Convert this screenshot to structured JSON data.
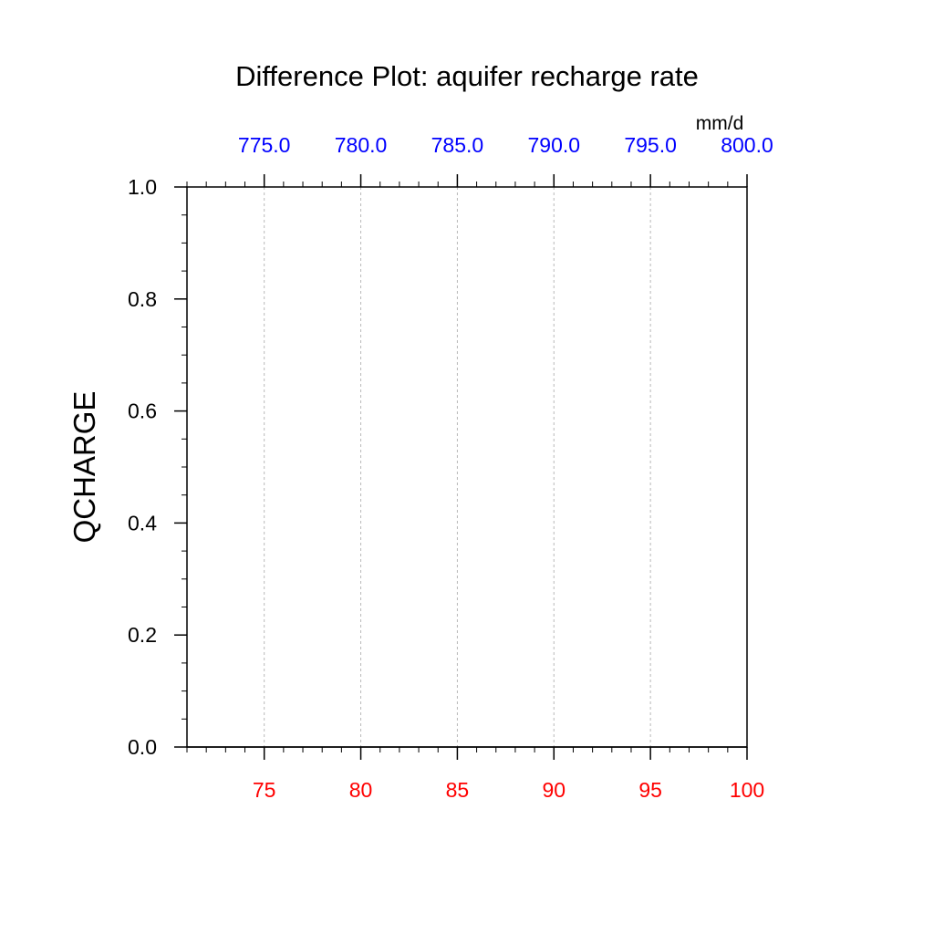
{
  "chart_data": {
    "type": "line",
    "title": "Difference Plot: aquifer recharge rate",
    "ylabel": "QCHARGE",
    "top_axis_units": "mm/d",
    "xlim": [
      71,
      100
    ],
    "ylim": [
      0.0,
      1.0
    ],
    "grid": "vertical-dashed",
    "x_ticks": [
      75,
      80,
      85,
      90,
      95,
      100
    ],
    "x_tick_labels": [
      "75",
      "80",
      "85",
      "90",
      "95",
      "100"
    ],
    "x_tick_color": "#ff0000",
    "top_ticks": [
      75,
      80,
      85,
      90,
      95,
      100
    ],
    "top_tick_labels": [
      "775.0",
      "780.0",
      "785.0",
      "790.0",
      "795.0",
      "800.0"
    ],
    "top_tick_color": "#0000ff",
    "y_ticks": [
      0.0,
      0.2,
      0.4,
      0.6,
      0.8,
      1.0
    ],
    "y_tick_labels": [
      "0.0",
      "0.2",
      "0.4",
      "0.6",
      "0.8",
      "1.0"
    ],
    "series": [
      {
        "x": [
          71,
          100
        ],
        "values": [
          0.0,
          0.0
        ],
        "color": "#000000"
      }
    ]
  }
}
